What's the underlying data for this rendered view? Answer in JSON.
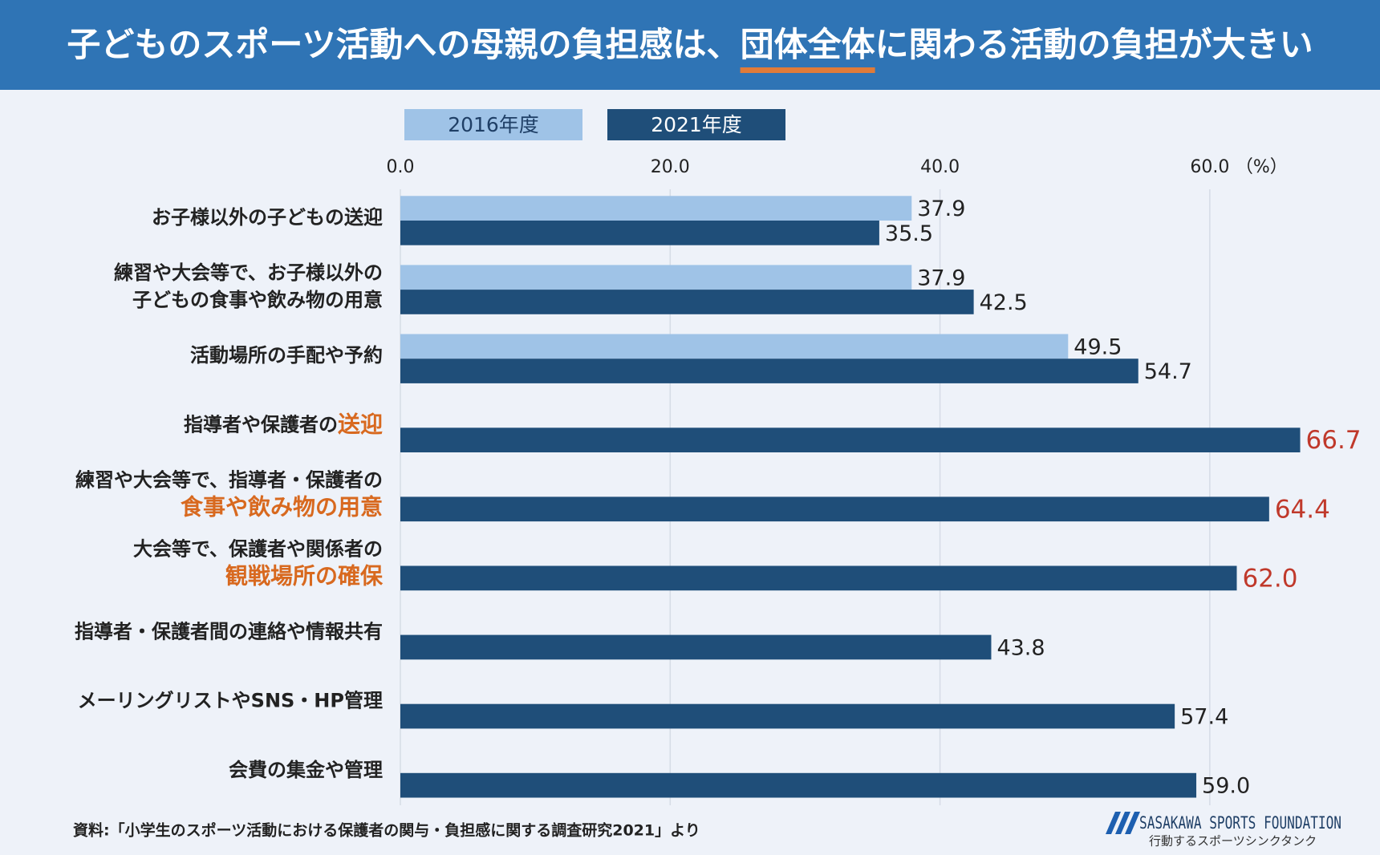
{
  "chart_data": {
    "type": "bar",
    "orientation": "horizontal",
    "title": [
      {
        "text": "子どものスポーツ活動への母親の負担感は、"
      },
      {
        "text": "団体全体",
        "underline": "#e07b39"
      },
      {
        "text": "に関わる活動の負担が大きい"
      }
    ],
    "categories": [
      [
        [
          {
            "text": "お子様以外の子どもの送迎"
          }
        ]
      ],
      [
        [
          {
            "text": "練習や大会等で、お子様以外の"
          }
        ],
        [
          {
            "text": "子どもの食事や飲み物の用意"
          }
        ]
      ],
      [
        [
          {
            "text": "活動場所の手配や予約"
          }
        ]
      ],
      [
        [
          {
            "text": "指導者や保護者の"
          },
          {
            "text": "送迎",
            "color": "#d8691f"
          }
        ]
      ],
      [
        [
          {
            "text": "練習や大会等で、指導者・保護者の"
          }
        ],
        [
          {
            "text": "食事や飲み物の用意",
            "color": "#d8691f"
          }
        ]
      ],
      [
        [
          {
            "text": "大会等で、保護者や関係者の"
          }
        ],
        [
          {
            "text": "観戦場所の確保",
            "color": "#d8691f"
          }
        ]
      ],
      [
        [
          {
            "text": "指導者・保護者間の連絡や情報共有"
          }
        ]
      ],
      [
        [
          {
            "text": "メーリングリストやSNS・HP管理"
          }
        ]
      ],
      [
        [
          {
            "text": "会費の集金や管理"
          }
        ]
      ]
    ],
    "series": [
      {
        "name": "2016年度",
        "color": "#9fc3e7",
        "legend_text_color": "#1f3f66",
        "values": [
          37.9,
          37.9,
          49.5,
          null,
          null,
          null,
          null,
          null,
          null
        ]
      },
      {
        "name": "2021年度",
        "color": "#1f4e79",
        "legend_text_color": "#ffffff",
        "values": [
          35.5,
          42.5,
          54.7,
          66.7,
          64.4,
          62.0,
          43.8,
          57.4,
          59.0
        ],
        "value_labels": [
          "35.5",
          "42.5",
          "54.7",
          "66.7",
          "64.4",
          "62.0",
          "43.8",
          "57.4",
          "59.0"
        ],
        "value_label_colors": [
          "#222222",
          "#222222",
          "#222222",
          "#c0392b",
          "#c0392b",
          "#c0392b",
          "#222222",
          "#222222",
          "#222222"
        ]
      }
    ],
    "xlim": [
      0,
      70
    ],
    "xticks": [
      {
        "value": 0,
        "label": "0.0"
      },
      {
        "value": 20,
        "label": "20.0"
      },
      {
        "value": 40,
        "label": "40.0"
      },
      {
        "value": 60,
        "label": "60.0"
      }
    ],
    "x_unit": "（%）",
    "grid": true,
    "source": "資料:「小学生のスポーツ活動における保護者の関与・負担感に関する調査研究2021」より",
    "logo": {
      "name": "SASAKAWA SPORTS FOUNDATION",
      "tagline": "行動するスポーツシンクタンク"
    }
  }
}
